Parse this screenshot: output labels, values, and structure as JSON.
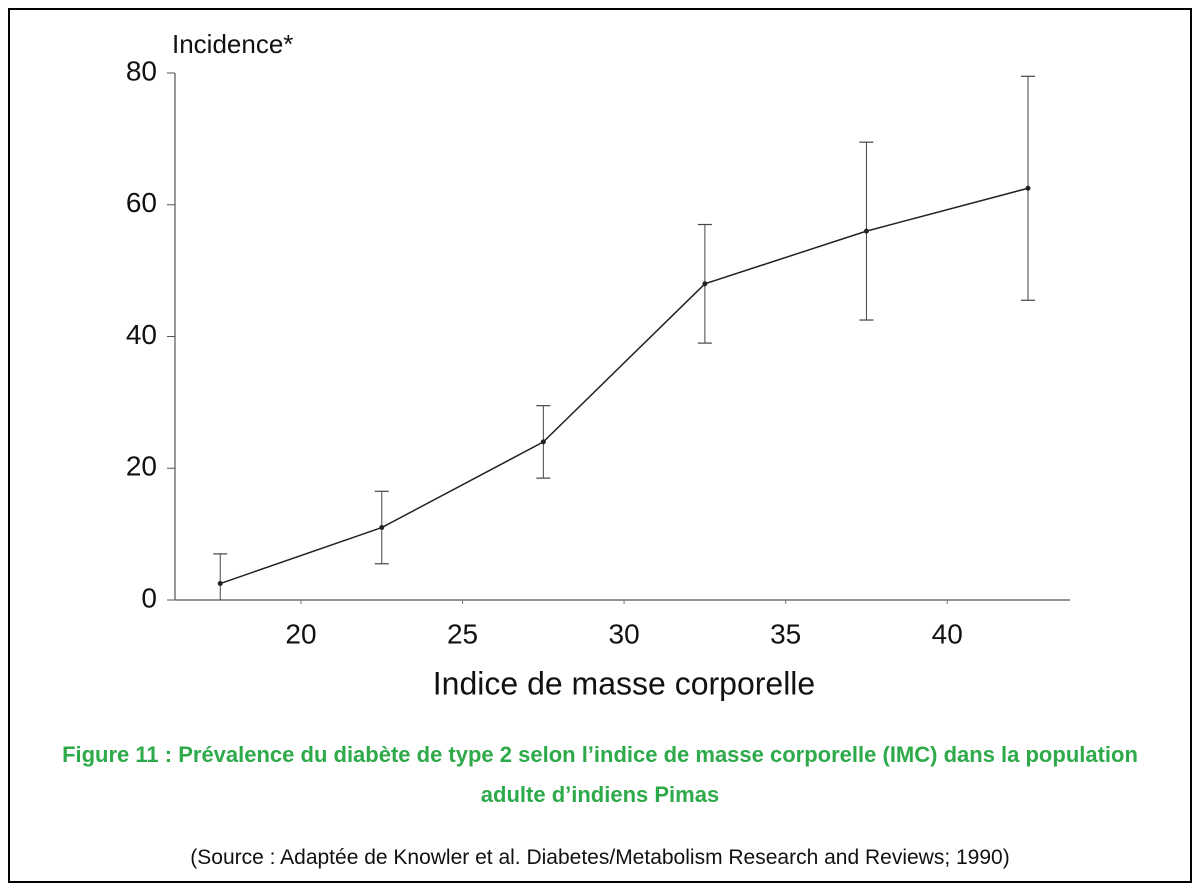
{
  "chart_data": {
    "type": "line",
    "y_label": "Incidence*",
    "x_label": "Indice de masse corporelle",
    "caption": "Figure 11 : Prévalence du diabète de type 2 selon l’indice de masse corporelle (IMC) dans la population adulte d’indiens Pimas",
    "source": "(Source : Adaptée de Knowler et al. Diabetes/Metabolism Research and Reviews; 1990)",
    "x": [
      17.5,
      22.5,
      27.5,
      32.5,
      37.5,
      42.5
    ],
    "values": [
      2.5,
      11,
      24,
      48,
      56,
      62.5
    ],
    "errors": [
      4.5,
      5.5,
      5.5,
      9,
      13.5,
      17
    ],
    "color": "#222222",
    "xlim": [
      16.1,
      43.8
    ],
    "xticks": [
      20,
      25,
      30,
      35,
      40
    ],
    "ylim": [
      0,
      80
    ],
    "yticks": [
      0,
      20,
      40,
      60,
      80
    ]
  }
}
